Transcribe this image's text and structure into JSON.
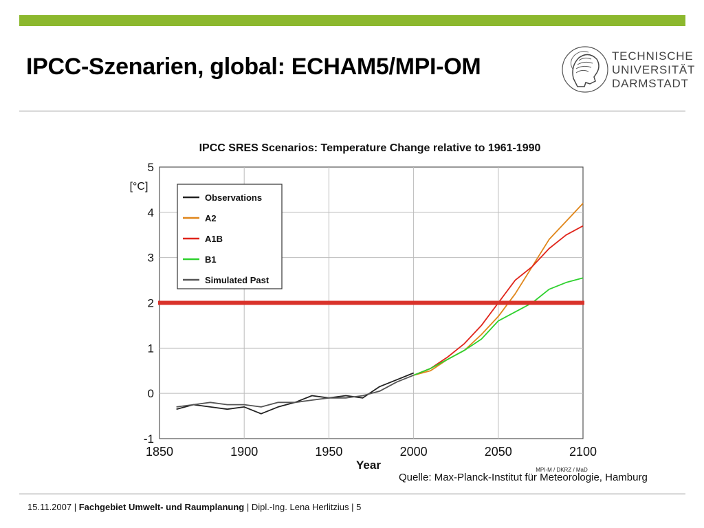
{
  "slide": {
    "title": "IPCC-Szenarien, global: ECHAM5/MPI-OM",
    "logo_lines": [
      "TECHNISCHE",
      "UNIVERSITÄT",
      "DARMSTADT"
    ],
    "source": "Quelle: Max-Planck-Institut für Meteorologie, Hamburg",
    "footer": {
      "date": "15.11.2007 |",
      "dept": "Fachgebiet Umwelt- und Raumplanung",
      "author": "| Dipl.-Ing. Lena Herlitzius",
      "page": "| 5"
    },
    "colors": {
      "accent_bar": "#8cb82e",
      "threshold_line": "#d9322a"
    }
  },
  "chart_data": {
    "type": "line",
    "title": "IPCC SRES Scenarios: Temperature Change relative to 1961-1990",
    "xlabel": "Year",
    "ylabel": "[°C]",
    "xlim": [
      1850,
      2100
    ],
    "ylim": [
      -1,
      5
    ],
    "xticks": [
      "1850",
      "1900",
      "1950",
      "2000",
      "2050",
      "2100"
    ],
    "yticks": [
      "-1",
      "0",
      "1",
      "2",
      "3",
      "4",
      "5"
    ],
    "grid": true,
    "legend_position": "top-left",
    "credit": "MPI-M / DKRZ / MaD",
    "threshold": {
      "y": 2,
      "color": "#d9322a"
    },
    "series": [
      {
        "name": "Observations",
        "color": "#222222",
        "x": [
          1860,
          1870,
          1880,
          1890,
          1900,
          1910,
          1920,
          1930,
          1940,
          1950,
          1960,
          1970,
          1980,
          1990,
          2000
        ],
        "y": [
          -0.35,
          -0.25,
          -0.3,
          -0.35,
          -0.3,
          -0.45,
          -0.3,
          -0.2,
          -0.05,
          -0.1,
          -0.05,
          -0.1,
          0.15,
          0.3,
          0.45
        ]
      },
      {
        "name": "A2",
        "color": "#e0861a",
        "x": [
          2000,
          2010,
          2020,
          2030,
          2040,
          2050,
          2060,
          2070,
          2080,
          2090,
          2100
        ],
        "y": [
          0.4,
          0.5,
          0.75,
          0.95,
          1.3,
          1.7,
          2.2,
          2.8,
          3.4,
          3.8,
          4.2
        ]
      },
      {
        "name": "A1B",
        "color": "#e0251b",
        "x": [
          2000,
          2010,
          2020,
          2030,
          2040,
          2050,
          2060,
          2070,
          2080,
          2090,
          2100
        ],
        "y": [
          0.4,
          0.55,
          0.8,
          1.1,
          1.5,
          2.0,
          2.5,
          2.8,
          3.2,
          3.5,
          3.7
        ]
      },
      {
        "name": "B1",
        "color": "#2ed12e",
        "x": [
          2000,
          2010,
          2020,
          2030,
          2040,
          2050,
          2060,
          2070,
          2080,
          2090,
          2100
        ],
        "y": [
          0.4,
          0.55,
          0.75,
          0.95,
          1.2,
          1.6,
          1.8,
          2.0,
          2.3,
          2.45,
          2.55
        ]
      },
      {
        "name": "Simulated Past",
        "color": "#555555",
        "x": [
          1860,
          1870,
          1880,
          1890,
          1900,
          1910,
          1920,
          1930,
          1940,
          1950,
          1960,
          1970,
          1980,
          1990,
          2000
        ],
        "y": [
          -0.3,
          -0.25,
          -0.2,
          -0.25,
          -0.25,
          -0.3,
          -0.2,
          -0.2,
          -0.15,
          -0.1,
          -0.1,
          -0.05,
          0.05,
          0.25,
          0.4
        ]
      }
    ]
  }
}
